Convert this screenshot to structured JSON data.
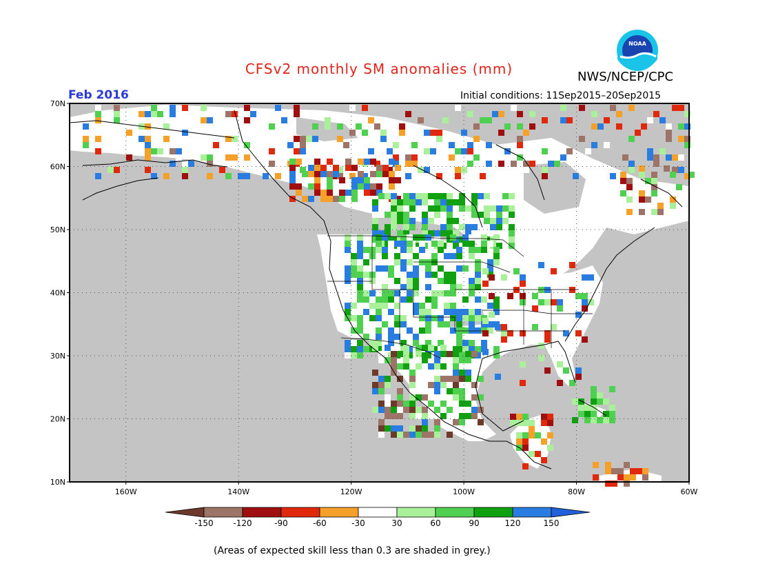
{
  "header": {
    "title": "CFSv2 monthly SM anomalies (mm)",
    "agency": "NWS/NCEP/CPC",
    "logo_text": "NOAA",
    "initial_conditions": "Initial conditions: 11Sep2015–20Sep2015",
    "valid_month": "Feb 2016"
  },
  "map": {
    "projection": "lat-lon",
    "lon_range": [
      -170,
      -60
    ],
    "lat_range": [
      10,
      70
    ],
    "lat_ticks": [
      "10N",
      "20N",
      "30N",
      "40N",
      "50N",
      "60N",
      "70N"
    ],
    "lon_ticks": [
      "160W",
      "140W",
      "120W",
      "100W",
      "80W",
      "60W"
    ],
    "gridlines": true,
    "background_color": "#c4c4c4",
    "land_no_skill_color": "#c4c4c4",
    "land_skill_neutral_color": "#ffffff"
  },
  "colorbar": {
    "levels": [
      "-150",
      "-120",
      "-90",
      "-60",
      "-30",
      "30",
      "60",
      "90",
      "120",
      "150"
    ],
    "colors": [
      "#6b3a2a",
      "#9c7468",
      "#a00f0f",
      "#e0280c",
      "#f5a028",
      "#ffffff",
      "#aaf09a",
      "#50d050",
      "#10a010",
      "#2a7de0",
      "#2060d8"
    ]
  },
  "footnote": "(Areas of expected skill less than 0.3 are shaded in grey.)"
}
